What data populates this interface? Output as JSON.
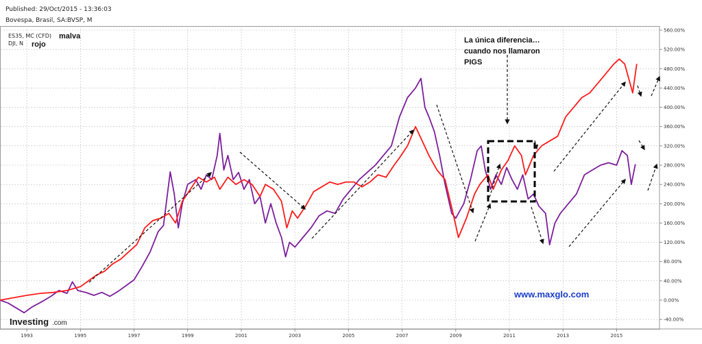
{
  "header": {
    "published": "Published: 29/Oct/2015 - 13:36:03",
    "instrument": "Bovespa, Brasil, SA:BVSP, M"
  },
  "legend": {
    "series1_name": "ES35, MC (CFD)",
    "series1_note": "malva",
    "series2_name": "DJI, N",
    "series2_note": "rojo"
  },
  "annotation": {
    "line1": "La única diferencia…",
    "line2": "cuando nos llamaron",
    "line3": "PIGS"
  },
  "watermark": {
    "site": "www.maxglo.com",
    "logo": "Investing",
    "logo_suffix": ".com"
  },
  "colors": {
    "es35": "#7b1e9b",
    "dji": "#ff1a1a",
    "arrows": "#111111",
    "site": "#1a3fc9"
  },
  "chart_data": {
    "type": "line",
    "xlabel": "",
    "ylabel": "",
    "xlim": [
      1992.0,
      2016.6
    ],
    "ylim": [
      -50,
      570
    ],
    "y_ticks": [
      {
        "v": 560,
        "label": "560.00%"
      },
      {
        "v": 520,
        "label": "520.00%"
      },
      {
        "v": 480,
        "label": "480.00%"
      },
      {
        "v": 440,
        "label": "440.00%"
      },
      {
        "v": 400,
        "label": "400.00%"
      },
      {
        "v": 360,
        "label": "360.00%"
      },
      {
        "v": 320,
        "label": "320.00%"
      },
      {
        "v": 280,
        "label": "280.00%"
      },
      {
        "v": 240,
        "label": "240.00%"
      },
      {
        "v": 200,
        "label": "200.00%"
      },
      {
        "v": 160,
        "label": "160.00%"
      },
      {
        "v": 120,
        "label": "120.00%"
      },
      {
        "v": 80,
        "label": "80.00%"
      },
      {
        "v": 40,
        "label": "40.00%"
      },
      {
        "v": 0,
        "label": "0.00%"
      },
      {
        "v": -40,
        "label": "-40.00%"
      }
    ],
    "x_ticks": [
      {
        "v": 1993,
        "label": "1993"
      },
      {
        "v": 1995,
        "label": "1995"
      },
      {
        "v": 1997,
        "label": "1997"
      },
      {
        "v": 1999,
        "label": "1999"
      },
      {
        "v": 2001,
        "label": "2001"
      },
      {
        "v": 2003,
        "label": "2003"
      },
      {
        "v": 2005,
        "label": "2005"
      },
      {
        "v": 2007,
        "label": "2007"
      },
      {
        "v": 2009,
        "label": "2009"
      },
      {
        "v": 2011,
        "label": "2011"
      },
      {
        "v": 2013,
        "label": "2013"
      },
      {
        "v": 2015,
        "label": "2015"
      }
    ],
    "series": [
      {
        "name": "ES35, MC (CFD)",
        "color": "#7b1e9b",
        "points": [
          [
            1992.0,
            0
          ],
          [
            1992.3,
            -6
          ],
          [
            1992.6,
            -16
          ],
          [
            1992.9,
            -26
          ],
          [
            1993.2,
            -14
          ],
          [
            1993.6,
            -2
          ],
          [
            1993.9,
            8
          ],
          [
            1994.2,
            20
          ],
          [
            1994.5,
            14
          ],
          [
            1994.7,
            38
          ],
          [
            1994.9,
            20
          ],
          [
            1995.2,
            16
          ],
          [
            1995.5,
            10
          ],
          [
            1995.8,
            16
          ],
          [
            1996.1,
            8
          ],
          [
            1996.4,
            18
          ],
          [
            1996.7,
            30
          ],
          [
            1997.0,
            42
          ],
          [
            1997.3,
            70
          ],
          [
            1997.6,
            100
          ],
          [
            1997.9,
            142
          ],
          [
            1998.1,
            155
          ],
          [
            1998.35,
            266
          ],
          [
            1998.5,
            220
          ],
          [
            1998.65,
            150
          ],
          [
            1998.8,
            200
          ],
          [
            1999.0,
            240
          ],
          [
            1999.3,
            250
          ],
          [
            1999.5,
            230
          ],
          [
            1999.7,
            260
          ],
          [
            1999.9,
            250
          ],
          [
            2000.1,
            300
          ],
          [
            2000.2,
            346
          ],
          [
            2000.35,
            270
          ],
          [
            2000.5,
            300
          ],
          [
            2000.7,
            250
          ],
          [
            2000.9,
            265
          ],
          [
            2001.1,
            230
          ],
          [
            2001.3,
            250
          ],
          [
            2001.5,
            200
          ],
          [
            2001.7,
            215
          ],
          [
            2001.9,
            160
          ],
          [
            2002.1,
            200
          ],
          [
            2002.3,
            160
          ],
          [
            2002.5,
            130
          ],
          [
            2002.65,
            90
          ],
          [
            2002.8,
            120
          ],
          [
            2003.0,
            110
          ],
          [
            2003.3,
            130
          ],
          [
            2003.6,
            150
          ],
          [
            2003.9,
            175
          ],
          [
            2004.2,
            185
          ],
          [
            2004.5,
            180
          ],
          [
            2004.8,
            210
          ],
          [
            2005.1,
            230
          ],
          [
            2005.4,
            250
          ],
          [
            2005.7,
            265
          ],
          [
            2006.0,
            280
          ],
          [
            2006.3,
            300
          ],
          [
            2006.6,
            320
          ],
          [
            2006.9,
            380
          ],
          [
            2007.2,
            420
          ],
          [
            2007.5,
            440
          ],
          [
            2007.7,
            460
          ],
          [
            2007.85,
            400
          ],
          [
            2008.0,
            380
          ],
          [
            2008.2,
            350
          ],
          [
            2008.4,
            300
          ],
          [
            2008.6,
            240
          ],
          [
            2008.85,
            180
          ],
          [
            2009.0,
            170
          ],
          [
            2009.3,
            200
          ],
          [
            2009.55,
            250
          ],
          [
            2009.8,
            310
          ],
          [
            2009.95,
            320
          ],
          [
            2010.1,
            270
          ],
          [
            2010.3,
            230
          ],
          [
            2010.5,
            260
          ],
          [
            2010.7,
            240
          ],
          [
            2010.9,
            275
          ],
          [
            2011.1,
            250
          ],
          [
            2011.3,
            230
          ],
          [
            2011.5,
            260
          ],
          [
            2011.7,
            210
          ],
          [
            2011.9,
            220
          ],
          [
            2012.1,
            195
          ],
          [
            2012.35,
            180
          ],
          [
            2012.5,
            115
          ],
          [
            2012.7,
            160
          ],
          [
            2012.9,
            180
          ],
          [
            2013.2,
            200
          ],
          [
            2013.5,
            220
          ],
          [
            2013.8,
            260
          ],
          [
            2014.1,
            270
          ],
          [
            2014.4,
            280
          ],
          [
            2014.7,
            285
          ],
          [
            2015.0,
            280
          ],
          [
            2015.2,
            310
          ],
          [
            2015.4,
            300
          ],
          [
            2015.55,
            240
          ],
          [
            2015.7,
            282
          ]
        ]
      },
      {
        "name": "DJI, N",
        "color": "#ff1a1a",
        "points": [
          [
            1992.0,
            0
          ],
          [
            1992.5,
            5
          ],
          [
            1993.0,
            10
          ],
          [
            1993.5,
            14
          ],
          [
            1994.0,
            16
          ],
          [
            1994.5,
            20
          ],
          [
            1995.0,
            28
          ],
          [
            1995.3,
            40
          ],
          [
            1995.6,
            52
          ],
          [
            1995.9,
            60
          ],
          [
            1996.2,
            75
          ],
          [
            1996.5,
            85
          ],
          [
            1996.8,
            100
          ],
          [
            1997.1,
            115
          ],
          [
            1997.4,
            150
          ],
          [
            1997.7,
            165
          ],
          [
            1998.0,
            170
          ],
          [
            1998.3,
            180
          ],
          [
            1998.55,
            160
          ],
          [
            1998.8,
            205
          ],
          [
            1999.1,
            230
          ],
          [
            1999.4,
            255
          ],
          [
            1999.7,
            245
          ],
          [
            2000.0,
            255
          ],
          [
            2000.2,
            230
          ],
          [
            2000.5,
            255
          ],
          [
            2000.8,
            240
          ],
          [
            2001.1,
            250
          ],
          [
            2001.4,
            240
          ],
          [
            2001.7,
            215
          ],
          [
            2001.9,
            240
          ],
          [
            2002.2,
            230
          ],
          [
            2002.5,
            205
          ],
          [
            2002.7,
            150
          ],
          [
            2002.9,
            185
          ],
          [
            2003.1,
            170
          ],
          [
            2003.4,
            195
          ],
          [
            2003.7,
            225
          ],
          [
            2004.0,
            235
          ],
          [
            2004.3,
            245
          ],
          [
            2004.6,
            240
          ],
          [
            2004.9,
            245
          ],
          [
            2005.2,
            245
          ],
          [
            2005.5,
            235
          ],
          [
            2005.8,
            245
          ],
          [
            2006.1,
            260
          ],
          [
            2006.4,
            255
          ],
          [
            2006.7,
            280
          ],
          [
            2006.9,
            295
          ],
          [
            2007.2,
            320
          ],
          [
            2007.5,
            360
          ],
          [
            2007.75,
            330
          ],
          [
            2008.0,
            300
          ],
          [
            2008.3,
            270
          ],
          [
            2008.6,
            250
          ],
          [
            2008.9,
            180
          ],
          [
            2009.1,
            130
          ],
          [
            2009.4,
            170
          ],
          [
            2009.7,
            220
          ],
          [
            2009.9,
            240
          ],
          [
            2010.2,
            260
          ],
          [
            2010.4,
            230
          ],
          [
            2010.7,
            270
          ],
          [
            2010.95,
            290
          ],
          [
            2011.2,
            320
          ],
          [
            2011.45,
            300
          ],
          [
            2011.6,
            260
          ],
          [
            2011.9,
            300
          ],
          [
            2012.2,
            320
          ],
          [
            2012.5,
            330
          ],
          [
            2012.8,
            340
          ],
          [
            2013.1,
            380
          ],
          [
            2013.4,
            400
          ],
          [
            2013.7,
            420
          ],
          [
            2014.0,
            430
          ],
          [
            2014.3,
            450
          ],
          [
            2014.6,
            470
          ],
          [
            2014.9,
            490
          ],
          [
            2015.1,
            500
          ],
          [
            2015.3,
            490
          ],
          [
            2015.5,
            450
          ],
          [
            2015.6,
            430
          ],
          [
            2015.75,
            490
          ]
        ]
      }
    ]
  }
}
